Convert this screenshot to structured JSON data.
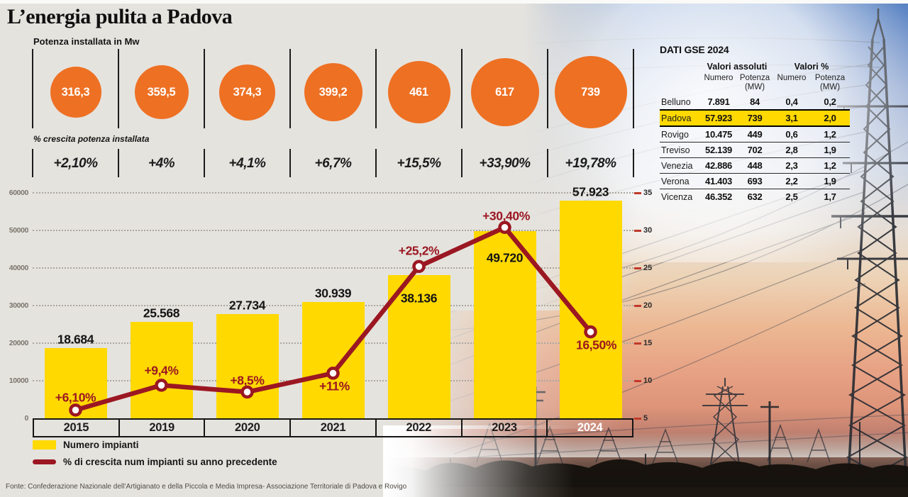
{
  "title": "L’energia pulita a Padova",
  "chart_data": [
    {
      "type": "bubble-row",
      "title": "Potenza installata in Mw",
      "categories": [
        "2015",
        "2019",
        "2020",
        "2021",
        "2022",
        "2023",
        "2024"
      ],
      "values": [
        316.3,
        359.5,
        374.3,
        399.2,
        461,
        617,
        739
      ],
      "labels": [
        "316,3",
        "359,5",
        "374,3",
        "399,2",
        "461",
        "617",
        "739"
      ],
      "growth_label": "% crescita potenza installata",
      "growth": [
        "+2,10%",
        "+4%",
        "+4,1%",
        "+6,7%",
        "+15,5%",
        "+33,90%",
        "+19,78%"
      ]
    },
    {
      "type": "bar",
      "categories": [
        "2015",
        "2019",
        "2020",
        "2021",
        "2022",
        "2023",
        "2024"
      ],
      "series": [
        {
          "name": "Numero impianti",
          "type": "bar",
          "values": [
            18684,
            25568,
            27734,
            30939,
            38136,
            49720,
            57923
          ],
          "labels": [
            "18.684",
            "25.568",
            "27.734",
            "30.939",
            "38.136",
            "49.720",
            "57.923"
          ]
        },
        {
          "name": "% di crescita num impianti su anno precedente",
          "type": "line",
          "values": [
            6.1,
            9.4,
            8.5,
            11,
            25.2,
            30.4,
            16.5
          ],
          "labels": [
            "+6,10%",
            "+9,4%",
            "+8,5%",
            "+11%",
            "+25,2%",
            "+30,40%",
            "16,50%"
          ]
        }
      ],
      "left_axis": {
        "ticks": [
          60000,
          50000,
          40000,
          30000,
          20000,
          10000,
          0
        ],
        "min": 0,
        "max": 60000
      },
      "right_axis": {
        "ticks": [
          35,
          30,
          25,
          20,
          15,
          10,
          5
        ],
        "min": 5,
        "max": 35
      },
      "grid": "dotted-horizontal",
      "legend_position": "bottom-left"
    }
  ],
  "table": {
    "title": "DATI GSE 2024",
    "group_headers": [
      "Valori assoluti",
      "Valori %"
    ],
    "sub_headers": [
      "Numero",
      "Potenza (MW)",
      "Numero",
      "Potenza (MW)"
    ],
    "rows": [
      {
        "name": "Belluno",
        "values": [
          "7.891",
          "84",
          "0,4",
          "0,2"
        ],
        "highlight": false
      },
      {
        "name": "Padova",
        "values": [
          "57.923",
          "739",
          "3,1",
          "2,0"
        ],
        "highlight": true
      },
      {
        "name": "Rovigo",
        "values": [
          "10.475",
          "449",
          "0,6",
          "1,2"
        ],
        "highlight": false
      },
      {
        "name": "Treviso",
        "values": [
          "52.139",
          "702",
          "2,8",
          "1,9"
        ],
        "highlight": false
      },
      {
        "name": "Venezia",
        "values": [
          "42.886",
          "448",
          "2,3",
          "1,2"
        ],
        "highlight": false
      },
      {
        "name": "Verona",
        "values": [
          "41.403",
          "693",
          "2,2",
          "1,9"
        ],
        "highlight": false
      },
      {
        "name": "Vicenza",
        "values": [
          "46.352",
          "632",
          "2,5",
          "1,7"
        ],
        "highlight": false
      }
    ]
  },
  "legend": [
    {
      "label": "Numero impianti",
      "swatch": "yellow-rect"
    },
    {
      "label": "% di crescita num impianti su anno precedente",
      "swatch": "red-line"
    }
  ],
  "source": "Fonte: Confederazione Nazionale dell’Artigianato e della Piccola e Media Impresa- Associazione Territoriale di Padova e Rovigo",
  "colors": {
    "background": "#e5e3de",
    "accent_orange": "#ee7023",
    "accent_yellow": "#ffd900",
    "accent_red": "#9b1722",
    "axis_tick_red": "#c0392b",
    "text_dark": "#141414",
    "axis_gray": "#7b766e"
  }
}
